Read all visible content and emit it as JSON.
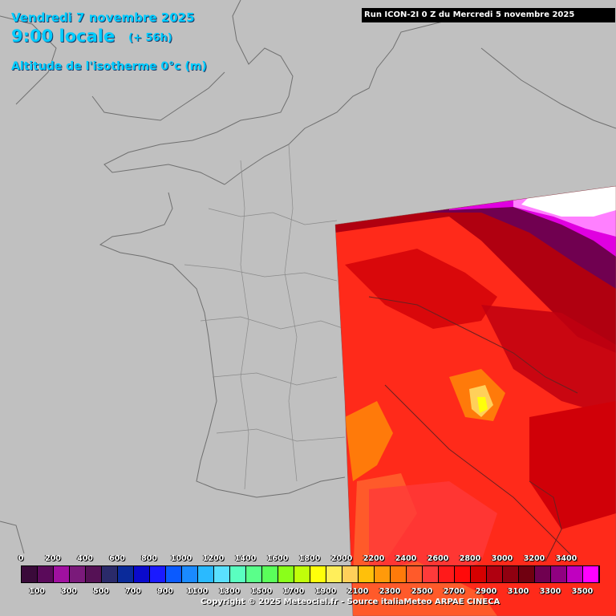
{
  "header": {
    "date": "Vendredi 7 novembre 2025",
    "time": "9:00 locale",
    "offset": "(+ 56h)",
    "variable": "Altitude de l'isotherme 0°c (m)",
    "run": "Run ICON-2I 0 Z du Mercredi 5 novembre 2025"
  },
  "legend": {
    "top_labels": [
      "0",
      "200",
      "400",
      "600",
      "800",
      "1000",
      "1200",
      "1400",
      "1600",
      "1800",
      "2000",
      "2200",
      "2400",
      "2600",
      "2800",
      "3000",
      "3200",
      "3400"
    ],
    "bottom_labels": [
      "100",
      "300",
      "500",
      "700",
      "900",
      "1100",
      "1300",
      "1500",
      "1700",
      "1900",
      "2100",
      "2300",
      "2500",
      "2700",
      "2900",
      "3100",
      "3300",
      "3500"
    ],
    "colors": [
      "#3a0a3a",
      "#5a0a5a",
      "#a010a0",
      "#7a1a7a",
      "#551155",
      "#2a2a6a",
      "#0a2a9a",
      "#0a0acc",
      "#1a1aff",
      "#0a5aff",
      "#1a8aff",
      "#2abaff",
      "#5ae0ff",
      "#5affc0",
      "#5aff8a",
      "#5aff5a",
      "#8aff1a",
      "#c0ff0a",
      "#ffff0a",
      "#ffee5a",
      "#ffd05a",
      "#ffc00a",
      "#ff9a0a",
      "#ff7a0a",
      "#ff5a2a",
      "#ff3a3a",
      "#ff1a1a",
      "#ff0a0a",
      "#d50000",
      "#b00010",
      "#900010",
      "#700010",
      "#700050",
      "#900080",
      "#c000c0",
      "#ff00ff",
      "#ff60ff",
      "#ffa0ff"
    ],
    "copyright": "Copyright © 2025 Meteociel.fr - Source italiaMeteo ARPAE CINECA"
  },
  "map_colors": {
    "land": "#c0c0c0",
    "borders": "#707070",
    "no_data": "#ffffff"
  }
}
